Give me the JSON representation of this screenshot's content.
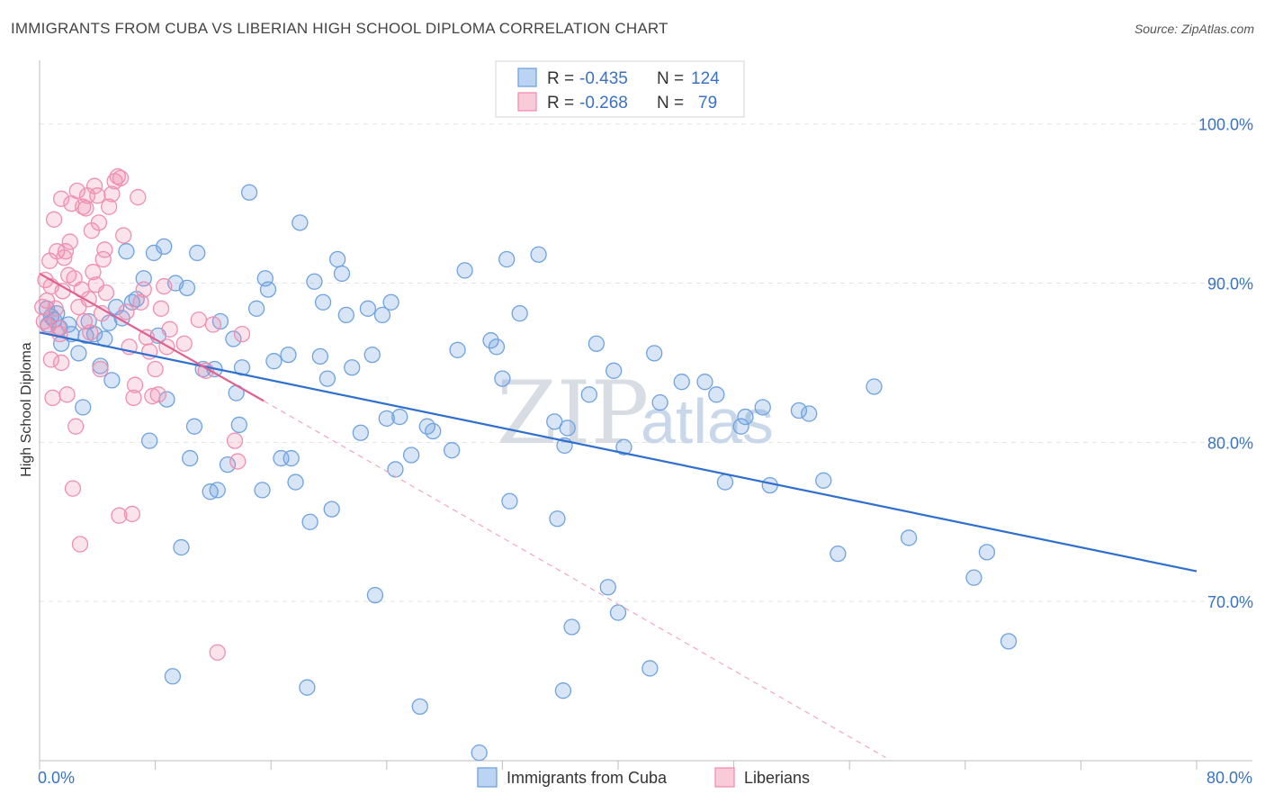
{
  "header": {
    "title": "IMMIGRANTS FROM CUBA VS LIBERIAN HIGH SCHOOL DIPLOMA CORRELATION CHART",
    "source": "Source: ZipAtlas.com"
  },
  "watermark": {
    "zip": "ZIP",
    "atlas": "atlas"
  },
  "colors": {
    "cuba": "#6fa3e0",
    "cuba_line": "#2f6fcf",
    "liberia": "#f08fb0",
    "liberia_line": "#e06090",
    "tick_text": "#3a72c4"
  },
  "legend": {
    "r_label": "R =",
    "n_label": "N =",
    "rows": [
      {
        "r": "-0.435",
        "n": "124"
      },
      {
        "r": "-0.268",
        "n": "79"
      }
    ]
  },
  "bottom_legend": [
    "Immigrants from Cuba",
    "Liberians"
  ],
  "chart_data": {
    "type": "scatter",
    "title": "IMMIGRANTS FROM CUBA VS LIBERIAN HIGH SCHOOL DIPLOMA CORRELATION CHART",
    "xlabel": "",
    "ylabel": "High School Diploma",
    "xlim": [
      0,
      80
    ],
    "ylim": [
      60,
      104
    ],
    "x_tick_labels": [
      "0.0%",
      "80.0%"
    ],
    "y_tick_labels": [
      "100.0%",
      "90.0%",
      "80.0%",
      "70.0%"
    ],
    "y_ticks": [
      100,
      90,
      80,
      70
    ],
    "grid": true,
    "legend_position": "top-center",
    "series": [
      {
        "name": "Immigrants from Cuba",
        "trend": {
          "x": [
            0,
            80
          ],
          "y": [
            86.9,
            71.9
          ]
        },
        "points": [
          [
            0.5,
            88.4
          ],
          [
            0.6,
            87.4
          ],
          [
            0.8,
            87.9
          ],
          [
            1.0,
            87.7
          ],
          [
            1.2,
            88.1
          ],
          [
            1.4,
            87.2
          ],
          [
            1.5,
            86.2
          ],
          [
            2.0,
            87.4
          ],
          [
            2.2,
            86.8
          ],
          [
            2.7,
            85.6
          ],
          [
            3.0,
            82.2
          ],
          [
            3.2,
            86.7
          ],
          [
            3.4,
            87.6
          ],
          [
            3.8,
            86.8
          ],
          [
            4.2,
            84.8
          ],
          [
            4.5,
            86.5
          ],
          [
            4.8,
            87.5
          ],
          [
            5.0,
            83.9
          ],
          [
            5.3,
            88.5
          ],
          [
            5.7,
            87.8
          ],
          [
            6.0,
            92.0
          ],
          [
            6.4,
            88.8
          ],
          [
            6.7,
            89.0
          ],
          [
            7.2,
            90.3
          ],
          [
            7.6,
            80.1
          ],
          [
            7.9,
            91.9
          ],
          [
            8.2,
            86.7
          ],
          [
            8.6,
            92.3
          ],
          [
            8.8,
            82.7
          ],
          [
            9.2,
            65.3
          ],
          [
            9.4,
            90.0
          ],
          [
            9.8,
            73.4
          ],
          [
            10.2,
            89.7
          ],
          [
            10.4,
            79.0
          ],
          [
            10.7,
            81.0
          ],
          [
            10.9,
            91.9
          ],
          [
            11.3,
            84.6
          ],
          [
            11.8,
            76.9
          ],
          [
            12.1,
            84.6
          ],
          [
            12.3,
            77.0
          ],
          [
            12.5,
            87.6
          ],
          [
            13.0,
            78.6
          ],
          [
            13.4,
            86.5
          ],
          [
            13.6,
            83.1
          ],
          [
            13.8,
            81.1
          ],
          [
            14.0,
            84.7
          ],
          [
            14.5,
            95.7
          ],
          [
            15.0,
            88.4
          ],
          [
            15.4,
            77.0
          ],
          [
            15.6,
            90.3
          ],
          [
            15.8,
            89.6
          ],
          [
            16.2,
            85.1
          ],
          [
            16.7,
            79.0
          ],
          [
            17.2,
            85.5
          ],
          [
            17.4,
            79.0
          ],
          [
            17.7,
            77.5
          ],
          [
            18.0,
            93.8
          ],
          [
            18.5,
            64.6
          ],
          [
            18.7,
            75.0
          ],
          [
            19.0,
            90.1
          ],
          [
            19.4,
            85.4
          ],
          [
            19.6,
            88.8
          ],
          [
            19.9,
            84.0
          ],
          [
            20.2,
            75.8
          ],
          [
            20.6,
            91.5
          ],
          [
            20.9,
            90.6
          ],
          [
            21.2,
            88.0
          ],
          [
            21.6,
            84.7
          ],
          [
            22.2,
            80.6
          ],
          [
            22.7,
            88.4
          ],
          [
            23.0,
            85.5
          ],
          [
            23.2,
            70.4
          ],
          [
            23.7,
            88.0
          ],
          [
            24.0,
            81.5
          ],
          [
            24.3,
            88.8
          ],
          [
            24.6,
            78.3
          ],
          [
            24.9,
            81.6
          ],
          [
            25.7,
            79.2
          ],
          [
            26.3,
            63.4
          ],
          [
            26.8,
            81.0
          ],
          [
            27.2,
            80.7
          ],
          [
            28.5,
            79.5
          ],
          [
            28.9,
            85.8
          ],
          [
            29.4,
            90.8
          ],
          [
            30.4,
            60.5
          ],
          [
            31.2,
            86.4
          ],
          [
            31.6,
            86.0
          ],
          [
            32.0,
            84.0
          ],
          [
            32.3,
            91.5
          ],
          [
            32.5,
            76.3
          ],
          [
            33.2,
            88.1
          ],
          [
            34.5,
            91.8
          ],
          [
            35.6,
            81.3
          ],
          [
            35.8,
            75.2
          ],
          [
            36.2,
            64.4
          ],
          [
            36.3,
            79.8
          ],
          [
            36.5,
            80.9
          ],
          [
            36.8,
            68.4
          ],
          [
            38.0,
            83.0
          ],
          [
            38.5,
            86.2
          ],
          [
            39.3,
            70.9
          ],
          [
            39.7,
            84.5
          ],
          [
            40.0,
            69.3
          ],
          [
            40.4,
            79.7
          ],
          [
            42.2,
            65.8
          ],
          [
            42.5,
            85.6
          ],
          [
            42.9,
            82.5
          ],
          [
            44.4,
            83.8
          ],
          [
            46.0,
            83.8
          ],
          [
            46.8,
            83.0
          ],
          [
            47.4,
            77.5
          ],
          [
            48.5,
            81.0
          ],
          [
            48.8,
            81.6
          ],
          [
            50.0,
            82.2
          ],
          [
            50.5,
            77.3
          ],
          [
            52.5,
            82.0
          ],
          [
            53.2,
            81.8
          ],
          [
            54.2,
            77.6
          ],
          [
            55.2,
            73.0
          ],
          [
            57.7,
            83.5
          ],
          [
            60.1,
            74.0
          ],
          [
            64.6,
            71.5
          ],
          [
            65.5,
            73.1
          ],
          [
            67.0,
            67.5
          ]
        ]
      },
      {
        "name": "Liberians",
        "trend": {
          "x": [
            0,
            15.5
          ],
          "y": [
            90.6,
            82.6
          ]
        },
        "trend_dashed": {
          "x": [
            15.5,
            58.5
          ],
          "y": [
            82.6,
            60.2
          ]
        },
        "points": [
          [
            0.2,
            88.5
          ],
          [
            0.3,
            87.6
          ],
          [
            0.4,
            90.2
          ],
          [
            0.5,
            88.9
          ],
          [
            0.6,
            87.3
          ],
          [
            0.7,
            91.4
          ],
          [
            0.8,
            89.8
          ],
          [
            0.8,
            85.2
          ],
          [
            0.9,
            82.8
          ],
          [
            1.0,
            94.0
          ],
          [
            1.1,
            88.4
          ],
          [
            1.2,
            92.0
          ],
          [
            1.3,
            87.2
          ],
          [
            1.4,
            86.8
          ],
          [
            1.5,
            95.3
          ],
          [
            1.5,
            85.0
          ],
          [
            1.6,
            89.5
          ],
          [
            1.7,
            91.6
          ],
          [
            1.8,
            92.0
          ],
          [
            1.9,
            83.0
          ],
          [
            2.0,
            90.5
          ],
          [
            2.1,
            92.6
          ],
          [
            2.2,
            95.0
          ],
          [
            2.3,
            77.1
          ],
          [
            2.4,
            90.3
          ],
          [
            2.5,
            81.0
          ],
          [
            2.6,
            95.8
          ],
          [
            2.7,
            88.5
          ],
          [
            2.8,
            73.6
          ],
          [
            2.9,
            89.6
          ],
          [
            3.0,
            94.8
          ],
          [
            3.1,
            87.6
          ],
          [
            3.2,
            94.7
          ],
          [
            3.3,
            95.5
          ],
          [
            3.4,
            89.0
          ],
          [
            3.5,
            86.9
          ],
          [
            3.6,
            93.3
          ],
          [
            3.7,
            90.7
          ],
          [
            3.8,
            96.1
          ],
          [
            3.9,
            89.9
          ],
          [
            4.0,
            95.5
          ],
          [
            4.1,
            93.8
          ],
          [
            4.2,
            84.6
          ],
          [
            4.3,
            88.1
          ],
          [
            4.4,
            91.5
          ],
          [
            4.5,
            92.1
          ],
          [
            4.6,
            89.4
          ],
          [
            4.8,
            94.8
          ],
          [
            5.0,
            95.6
          ],
          [
            5.2,
            96.4
          ],
          [
            5.4,
            96.7
          ],
          [
            5.5,
            75.4
          ],
          [
            5.6,
            96.6
          ],
          [
            5.8,
            93.0
          ],
          [
            6.0,
            88.2
          ],
          [
            6.2,
            86.0
          ],
          [
            6.4,
            75.5
          ],
          [
            6.5,
            82.8
          ],
          [
            6.6,
            83.6
          ],
          [
            6.8,
            95.4
          ],
          [
            7.0,
            88.8
          ],
          [
            7.2,
            89.6
          ],
          [
            7.4,
            86.6
          ],
          [
            7.6,
            85.7
          ],
          [
            7.8,
            82.9
          ],
          [
            8.0,
            84.6
          ],
          [
            8.2,
            83.0
          ],
          [
            8.4,
            88.4
          ],
          [
            8.6,
            89.8
          ],
          [
            8.8,
            86.0
          ],
          [
            9.0,
            87.1
          ],
          [
            10.0,
            86.2
          ],
          [
            11.0,
            87.7
          ],
          [
            11.5,
            84.5
          ],
          [
            12.0,
            87.4
          ],
          [
            12.3,
            66.8
          ],
          [
            13.5,
            80.1
          ],
          [
            13.7,
            78.8
          ],
          [
            14.0,
            86.8
          ]
        ]
      }
    ]
  }
}
